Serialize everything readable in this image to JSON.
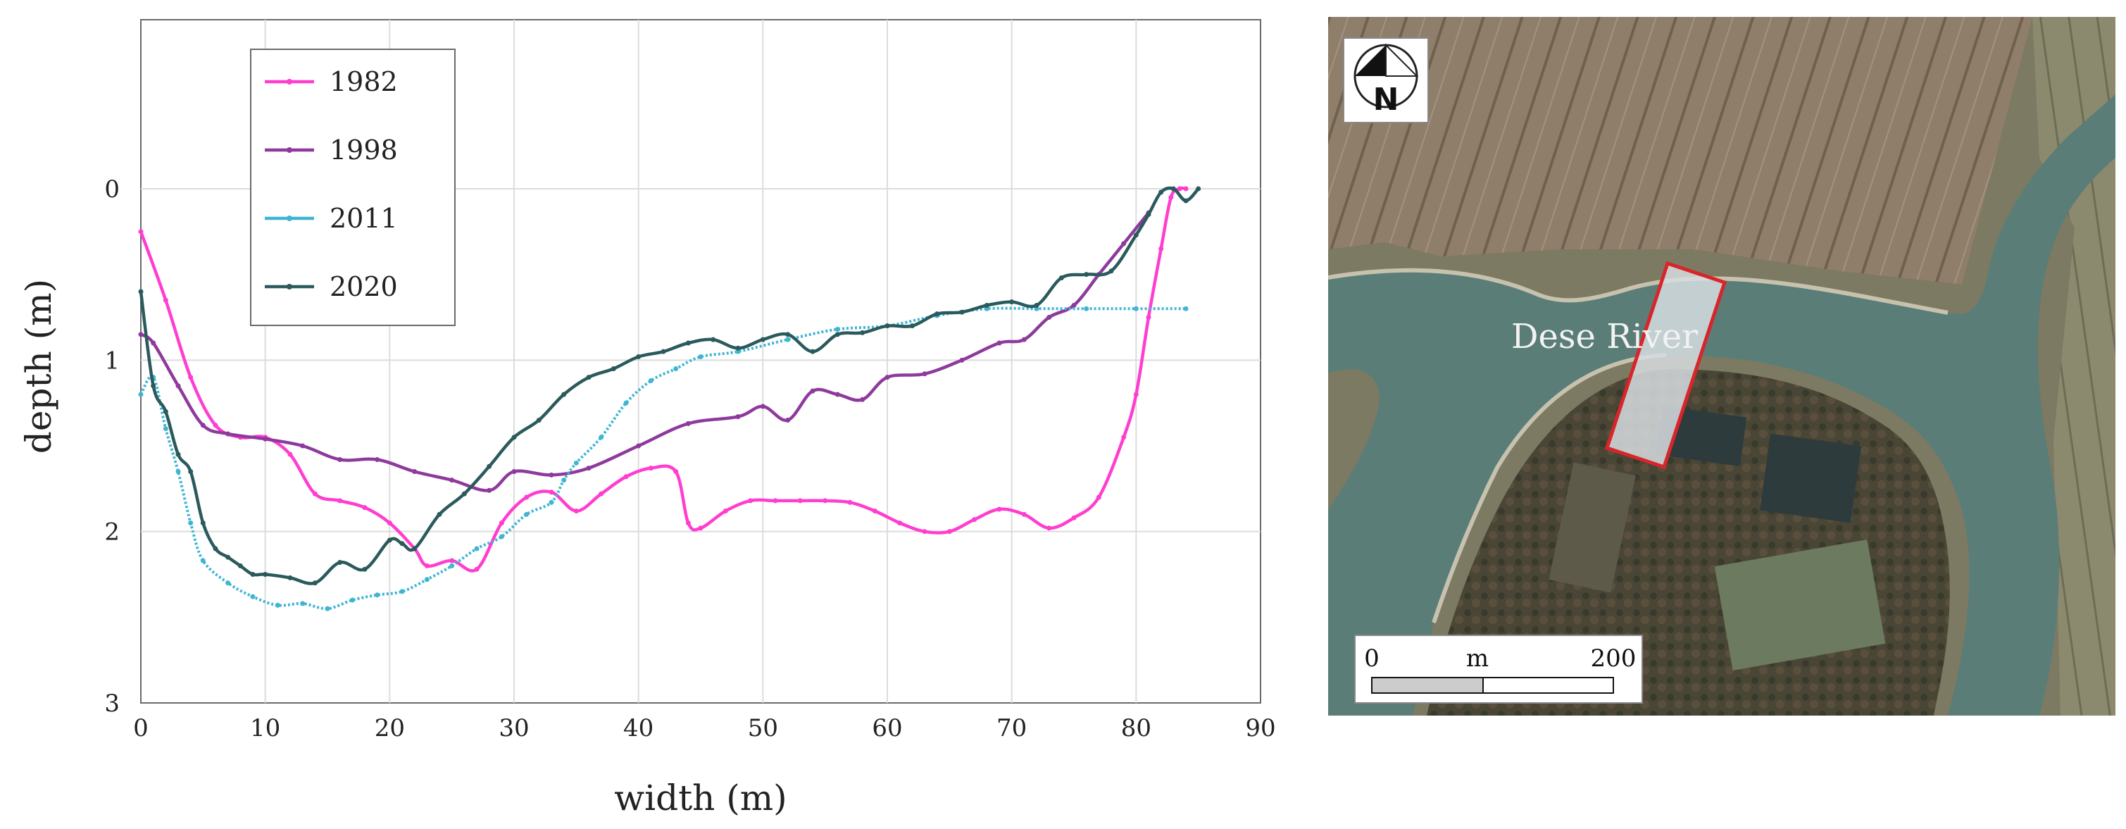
{
  "chart_data": {
    "type": "line",
    "title": "",
    "xlabel": "width (m)",
    "ylabel": "depth (m)",
    "xlim": [
      0,
      90
    ],
    "ylim": [
      0,
      3
    ],
    "y_inverted": true,
    "x_ticks": [
      "0",
      "10",
      "20",
      "30",
      "40",
      "50",
      "60",
      "70",
      "80",
      "90"
    ],
    "y_ticks": [
      "0",
      "1",
      "2",
      "3"
    ],
    "grid": true,
    "legend_position": "top-left",
    "series": [
      {
        "name": "1982",
        "color": "#ff3dcf",
        "x": [
          0,
          2,
          4,
          6,
          8,
          10,
          12,
          14,
          16,
          18,
          20,
          22,
          23,
          25,
          27,
          29,
          31,
          33,
          35,
          37,
          39,
          41,
          43,
          44,
          45,
          47,
          49,
          51,
          53,
          55,
          57,
          59,
          61,
          63,
          65,
          67,
          69,
          71,
          73,
          75,
          77,
          79,
          80,
          81,
          82,
          82.8,
          83.5,
          84
        ],
        "y": [
          0.25,
          0.65,
          1.1,
          1.38,
          1.45,
          1.45,
          1.55,
          1.78,
          1.82,
          1.86,
          1.95,
          2.1,
          2.2,
          2.17,
          2.22,
          1.95,
          1.8,
          1.77,
          1.88,
          1.78,
          1.68,
          1.63,
          1.65,
          1.95,
          1.98,
          1.88,
          1.82,
          1.82,
          1.82,
          1.82,
          1.83,
          1.88,
          1.95,
          2.0,
          2.0,
          1.93,
          1.87,
          1.9,
          1.98,
          1.92,
          1.8,
          1.45,
          1.2,
          0.75,
          0.35,
          0.05,
          0.0,
          0.0
        ]
      },
      {
        "name": "1998",
        "color": "#8e3a9d",
        "x": [
          0,
          1,
          3,
          5,
          7,
          10,
          13,
          16,
          19,
          22,
          25,
          28,
          30,
          33,
          36,
          40,
          44,
          48,
          50,
          52,
          54,
          56,
          58,
          60,
          63,
          66,
          69,
          71,
          73,
          75,
          77,
          79,
          81
        ],
        "y": [
          0.85,
          0.9,
          1.15,
          1.38,
          1.43,
          1.46,
          1.5,
          1.58,
          1.58,
          1.65,
          1.7,
          1.76,
          1.65,
          1.67,
          1.63,
          1.5,
          1.37,
          1.33,
          1.27,
          1.35,
          1.18,
          1.2,
          1.23,
          1.1,
          1.08,
          1.0,
          0.9,
          0.88,
          0.75,
          0.68,
          0.5,
          0.32,
          0.14
        ]
      },
      {
        "name": "2011",
        "color": "#3fb5d4",
        "x": [
          0,
          1,
          2,
          3,
          4,
          5,
          7,
          9,
          11,
          13,
          15,
          17,
          19,
          21,
          23,
          25,
          27,
          29,
          31,
          33,
          34,
          35,
          37,
          39,
          41,
          43,
          45,
          48,
          52,
          56,
          60,
          64,
          68,
          72,
          76,
          80,
          84
        ],
        "y": [
          1.2,
          1.1,
          1.4,
          1.65,
          1.95,
          2.17,
          2.3,
          2.38,
          2.43,
          2.42,
          2.45,
          2.4,
          2.37,
          2.35,
          2.28,
          2.2,
          2.1,
          2.03,
          1.9,
          1.83,
          1.7,
          1.6,
          1.45,
          1.25,
          1.12,
          1.05,
          0.98,
          0.95,
          0.88,
          0.82,
          0.8,
          0.74,
          0.7,
          0.7,
          0.7,
          0.7,
          0.7
        ]
      },
      {
        "name": "2020",
        "color": "#2b5a5c",
        "x": [
          0,
          1,
          2,
          3,
          4,
          5,
          6,
          7,
          8,
          9,
          10,
          12,
          14,
          16,
          18,
          20,
          21,
          22,
          24,
          26,
          28,
          30,
          32,
          34,
          36,
          38,
          40,
          42,
          44,
          46,
          48,
          50,
          52,
          54,
          56,
          58,
          60,
          62,
          64,
          66,
          68,
          70,
          72,
          74,
          76,
          78,
          80,
          81,
          82,
          83,
          84,
          85
        ],
        "y": [
          0.6,
          1.15,
          1.3,
          1.55,
          1.65,
          1.95,
          2.1,
          2.15,
          2.2,
          2.25,
          2.25,
          2.27,
          2.3,
          2.18,
          2.22,
          2.05,
          2.07,
          2.1,
          1.9,
          1.78,
          1.62,
          1.45,
          1.35,
          1.2,
          1.1,
          1.05,
          0.98,
          0.95,
          0.9,
          0.88,
          0.93,
          0.88,
          0.85,
          0.95,
          0.85,
          0.84,
          0.8,
          0.8,
          0.73,
          0.72,
          0.68,
          0.66,
          0.68,
          0.52,
          0.5,
          0.48,
          0.27,
          0.15,
          0.02,
          0.0,
          0.07,
          0.0
        ]
      }
    ]
  },
  "map": {
    "river_label": "Dese River",
    "scale_start": "0",
    "scale_unit": "m",
    "scale_end": "200",
    "north_label": "N",
    "colors": {
      "water": "#5b7d78",
      "field": "#8a7a66",
      "field_light": "#a89580",
      "vegetation": "#3d4a35",
      "pond": "#2e3b3d",
      "highlight_fill": "#d7dde0",
      "highlight_border": "#d9252a"
    }
  }
}
